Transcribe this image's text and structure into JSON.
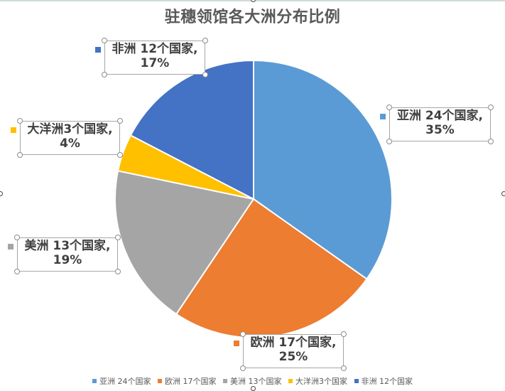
{
  "chart_data": {
    "type": "pie",
    "title": "驻穗领馆各大洲分布比例",
    "categories": [
      "亚洲 24个国家",
      "欧洲 17个国家",
      "美洲 13个国家",
      "大洋洲3个国家",
      "非洲 12个国家"
    ],
    "values": [
      24,
      17,
      13,
      3,
      12
    ],
    "percentages": [
      "35%",
      "25%",
      "19%",
      "4%",
      "17%"
    ],
    "colors": [
      "#5b9bd5",
      "#ed7d31",
      "#a5a5a5",
      "#ffc000",
      "#4472c4"
    ],
    "legend_position": "bottom",
    "data_labels": [
      {
        "line1": "亚洲 24个国家,",
        "line2": "35%"
      },
      {
        "line1": "欧洲 17个国家,",
        "line2": "25%"
      },
      {
        "line1": "美洲 13个国家,",
        "line2": "19%"
      },
      {
        "line1": "大洋洲3个国家,",
        "line2": "4%"
      },
      {
        "line1": "非洲 12个国家,",
        "line2": "17%"
      }
    ]
  },
  "legend": [
    "亚洲 24个国家",
    "欧洲 17个国家",
    "美洲 13个国家",
    "大洋洲3个国家",
    "非洲 12个国家"
  ]
}
